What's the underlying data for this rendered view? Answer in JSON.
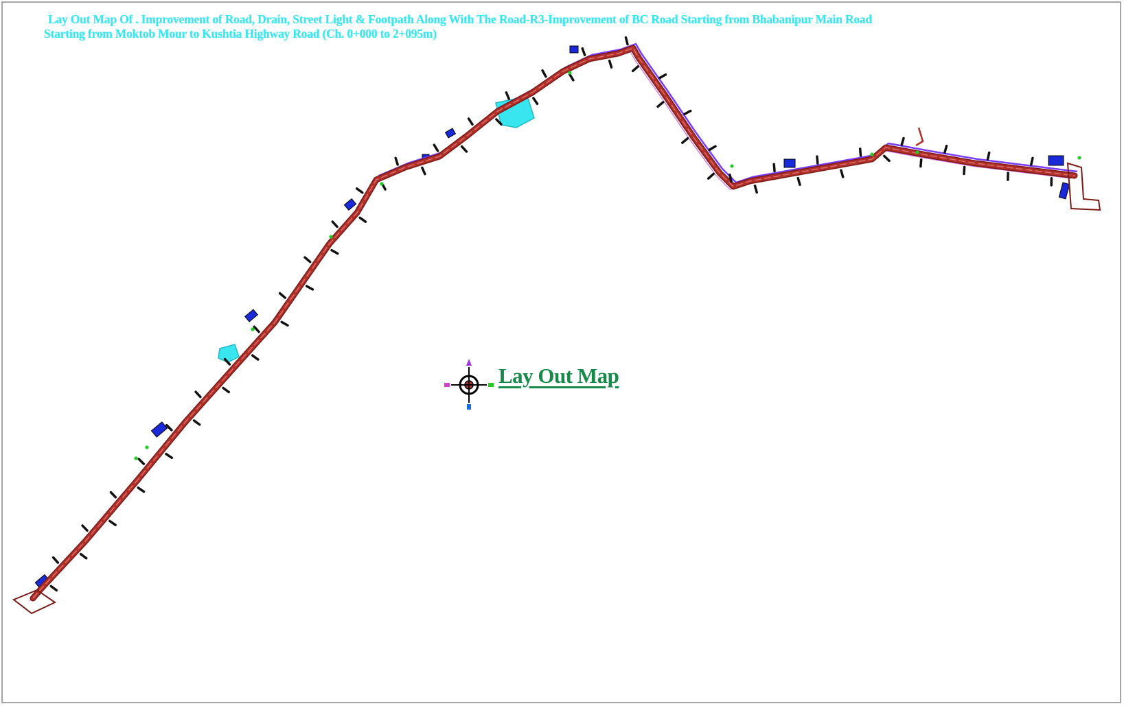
{
  "title": {
    "line1": "Lay Out Map Of . Improvement of Road, Drain, Street Light & Footpath  Along With The Road-R3-Improvement of BC Road Starting from Bhabanipur Main Road",
    "line2": "Starting from Moktob Mour to Kushtia Highway Road (Ch. 0+000 to 2+095m)"
  },
  "map_label": "Lay Out Map",
  "colors": {
    "road": "#b0302a",
    "road_dark": "#7a1a16",
    "road_edge": "#e07070",
    "drain": "#7a3cff",
    "footpath": "#d040d0",
    "light_pole": "#111111",
    "building": "#1a2ad8",
    "pond": "#39e6f0",
    "tree": "#22cc22",
    "title": "#39e6f0",
    "label": "#178a4a"
  },
  "icons": [
    "north-arrow-compass-icon"
  ]
}
